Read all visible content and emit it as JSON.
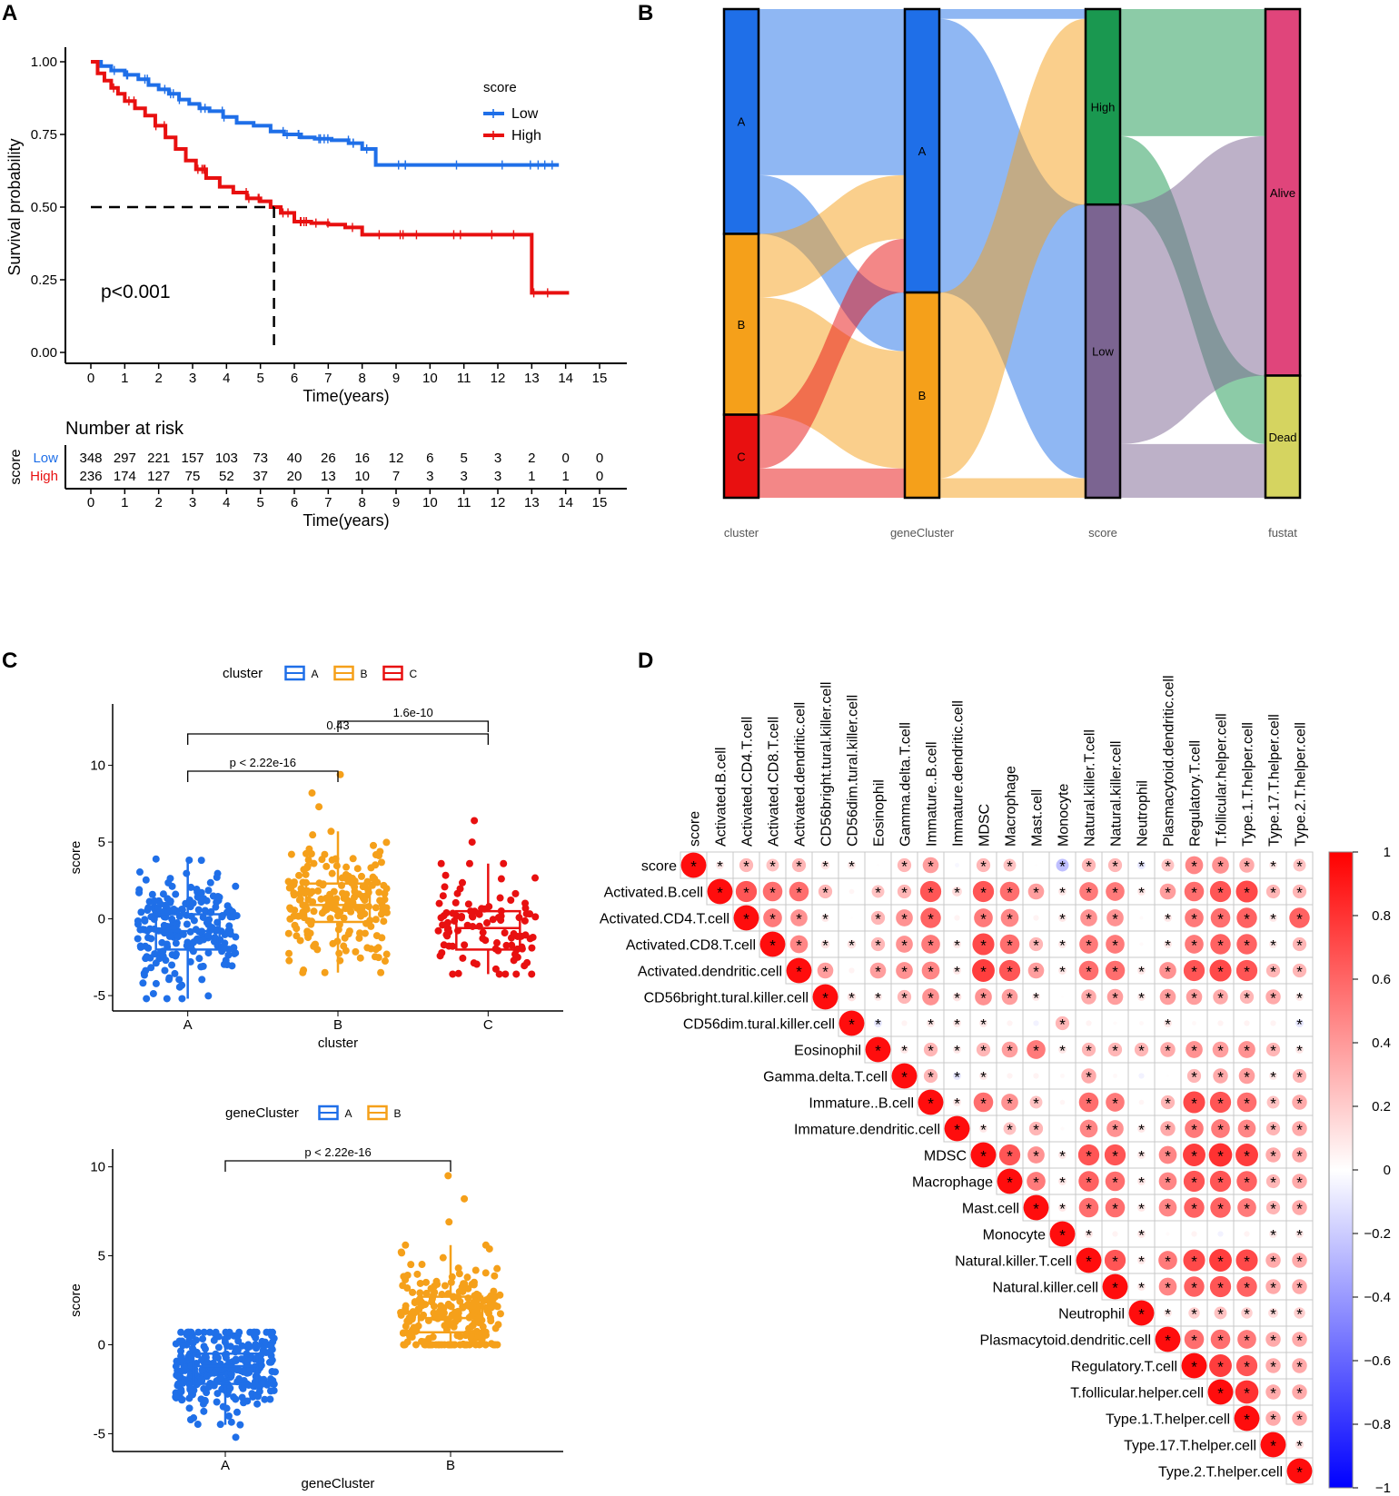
{
  "panel_labels": [
    "A",
    "B",
    "C",
    "D"
  ],
  "chart_data": [
    {
      "id": "A",
      "type": "line",
      "subtype": "kaplan-meier",
      "xlabel": "Time(years)",
      "ylabel": "Survival probability",
      "xticks": [
        0,
        1,
        2,
        3,
        4,
        5,
        6,
        7,
        8,
        9,
        10,
        11,
        12,
        13,
        14,
        15
      ],
      "yticks": [
        "0.00",
        "0.25",
        "0.50",
        "0.75",
        "1.00"
      ],
      "xlim": [
        0,
        15
      ],
      "ylim": [
        0,
        1
      ],
      "legend_title": "score",
      "pvalue": "p<0.001",
      "median_survival_high": 5.4,
      "series": [
        {
          "name": "Low",
          "color": "#1f6fe8",
          "x": [
            0,
            0.3,
            0.6,
            1,
            1.4,
            1.7,
            2,
            2.3,
            2.6,
            2.9,
            3.2,
            3.5,
            3.9,
            4.3,
            4.8,
            5.3,
            5.7,
            6.2,
            6.6,
            7.1,
            7.6,
            8.0,
            8.4,
            9.0,
            11.0,
            13.8
          ],
          "y": [
            1,
            0.985,
            0.97,
            0.955,
            0.94,
            0.92,
            0.905,
            0.89,
            0.87,
            0.855,
            0.84,
            0.83,
            0.81,
            0.79,
            0.78,
            0.76,
            0.75,
            0.74,
            0.735,
            0.73,
            0.72,
            0.7,
            0.645,
            0.645,
            0.645,
            0.645
          ]
        },
        {
          "name": "High",
          "color": "#e81010",
          "x": [
            0,
            0.2,
            0.4,
            0.6,
            0.8,
            1.0,
            1.3,
            1.6,
            1.9,
            2.2,
            2.5,
            2.8,
            3.1,
            3.4,
            3.8,
            4.2,
            4.6,
            5.0,
            5.3,
            5.6,
            6.0,
            6.5,
            7.0,
            7.5,
            8.0,
            9.0,
            11.0,
            12.9,
            13.0,
            14.1
          ],
          "y": [
            1,
            0.96,
            0.935,
            0.91,
            0.89,
            0.865,
            0.84,
            0.815,
            0.78,
            0.74,
            0.7,
            0.66,
            0.63,
            0.6,
            0.57,
            0.55,
            0.53,
            0.52,
            0.5,
            0.48,
            0.45,
            0.445,
            0.44,
            0.43,
            0.405,
            0.405,
            0.405,
            0.405,
            0.205,
            0.205
          ]
        }
      ],
      "risk_table": {
        "title": "Number at risk",
        "ylabel": "score",
        "xlabel": "Time(years)",
        "rows": [
          {
            "name": "Low",
            "color": "#1f6fe8",
            "values": [
              "348",
              "297",
              "221",
              "157",
              "103",
              "73",
              "40",
              "26",
              "16",
              "12",
              "6",
              "5",
              "3",
              "2",
              "0",
              "0"
            ]
          },
          {
            "name": "High",
            "color": "#e81010",
            "values": [
              "236",
              "174",
              "127",
              "75",
              "52",
              "37",
              "20",
              "13",
              "10",
              "7",
              "3",
              "3",
              "3",
              "1",
              "1",
              "0"
            ]
          }
        ]
      }
    },
    {
      "id": "B",
      "type": "sankey",
      "axes": [
        "cluster",
        "geneCluster",
        "score",
        "fustat"
      ],
      "nodes": [
        {
          "axis": 0,
          "label": "A",
          "value": 0.46,
          "color": "#1f6fe8"
        },
        {
          "axis": 0,
          "label": "B",
          "value": 0.37,
          "color": "#f5a01a"
        },
        {
          "axis": 0,
          "label": "C",
          "value": 0.17,
          "color": "#e81010"
        },
        {
          "axis": 1,
          "label": "A",
          "value": 0.58,
          "color": "#1f6fe8"
        },
        {
          "axis": 1,
          "label": "B",
          "value": 0.42,
          "color": "#f5a01a"
        },
        {
          "axis": 2,
          "label": "High",
          "value": 0.4,
          "color": "#1a9850"
        },
        {
          "axis": 2,
          "label": "Low",
          "value": 0.6,
          "color": "#7b6491"
        },
        {
          "axis": 3,
          "label": "Alive",
          "value": 0.75,
          "color": "#e0457b"
        },
        {
          "axis": 3,
          "label": "Dead",
          "value": 0.25,
          "color": "#d5d460"
        }
      ],
      "flows": [
        {
          "from": 0,
          "to": 3,
          "value": 0.34
        },
        {
          "from": 0,
          "to": 4,
          "value": 0.12
        },
        {
          "from": 1,
          "to": 3,
          "value": 0.13
        },
        {
          "from": 1,
          "to": 4,
          "value": 0.24
        },
        {
          "from": 2,
          "to": 3,
          "value": 0.11
        },
        {
          "from": 2,
          "to": 4,
          "value": 0.06
        },
        {
          "from": 3,
          "to": 5,
          "value": 0.02
        },
        {
          "from": 3,
          "to": 6,
          "value": 0.56
        },
        {
          "from": 4,
          "to": 5,
          "value": 0.38
        },
        {
          "from": 4,
          "to": 6,
          "value": 0.04
        },
        {
          "from": 5,
          "to": 7,
          "value": 0.26
        },
        {
          "from": 5,
          "to": 8,
          "value": 0.14
        },
        {
          "from": 6,
          "to": 7,
          "value": 0.49
        },
        {
          "from": 6,
          "to": 8,
          "value": 0.11
        }
      ]
    },
    {
      "id": "C1",
      "type": "box",
      "title": "cluster",
      "xlabel": "cluster",
      "ylabel": "score",
      "categories": [
        "A",
        "B",
        "C"
      ],
      "colors": [
        "#1f6fe8",
        "#f5a01a",
        "#e81010"
      ],
      "yticks": [
        "-5",
        "0",
        "5",
        "10"
      ],
      "ylim": [
        -6,
        14
      ],
      "boxes": [
        {
          "q1": -2.0,
          "median": -0.8,
          "q3": 0.3,
          "whislo": -5.2,
          "whishi": 3.9,
          "n": 220
        },
        {
          "q1": -0.2,
          "median": 0.9,
          "q3": 2.3,
          "whislo": -3.5,
          "whishi": 5.7,
          "n": 200
        },
        {
          "q1": -2.0,
          "median": -0.6,
          "q3": 0.5,
          "whislo": -3.6,
          "whishi": 3.6,
          "n": 100
        }
      ],
      "outliers": [
        [],
        [
          9.4,
          8.2,
          7.3
        ],
        [
          6.4,
          5.0
        ]
      ],
      "comparisons": [
        {
          "label": "p < 2.22e-16",
          "pair": [
            0,
            1
          ]
        },
        {
          "label": "0.43",
          "pair": [
            0,
            2
          ]
        },
        {
          "label": "1.6e-10",
          "pair": [
            1,
            2
          ]
        }
      ]
    },
    {
      "id": "C2",
      "type": "box",
      "title": "geneCluster",
      "xlabel": "geneCluster",
      "ylabel": "score",
      "categories": [
        "A",
        "B"
      ],
      "colors": [
        "#1f6fe8",
        "#f5a01a"
      ],
      "yticks": [
        "-5",
        "0",
        "5",
        "10"
      ],
      "ylim": [
        -6,
        11
      ],
      "boxes": [
        {
          "q1": -2.2,
          "median": -1.2,
          "q3": -0.5,
          "whislo": -4.5,
          "whishi": 0.7,
          "n": 330
        },
        {
          "q1": 0.7,
          "median": 1.5,
          "q3": 2.7,
          "whislo": 0.0,
          "whishi": 5.6,
          "n": 240
        }
      ],
      "outliers": [
        [
          -5.2
        ],
        [
          9.5,
          8.2,
          6.9
        ]
      ],
      "comparisons": [
        {
          "label": "p < 2.22e-16",
          "pair": [
            0,
            1
          ]
        }
      ]
    },
    {
      "id": "D",
      "type": "heatmap",
      "subtype": "correlation-upper-triangle",
      "labels": [
        "score",
        "Activated.B.cell",
        "Activated.CD4.T.cell",
        "Activated.CD8.T.cell",
        "Activated.dendritic.cell",
        "CD56bright.tural.killer.cell",
        "CD56dim.tural.killer.cell",
        "Eosinophil",
        "Gamma.delta.T.cell",
        "Immature..B.cell",
        "Immature.dendritic.cell",
        "MDSC",
        "Macrophage",
        "Mast.cell",
        "Monocyte",
        "Natural.killer.T.cell",
        "Natural.killer.cell",
        "Neutrophil",
        "Plasmacytoid.dendritic.cell",
        "Regulatory.T.cell",
        "T.follicular.helper.cell",
        "Type.1.T.helper.cell",
        "Type.17.T.helper.cell",
        "Type.2.T.helper.cell"
      ],
      "colorbar_ticks": [
        "1",
        "0.8",
        "0.6",
        "0.4",
        "0.2",
        "0",
        "−0.2",
        "−0.4",
        "−0.6",
        "−0.8",
        "−1"
      ],
      "significance_mark": "*",
      "upper_triangle_rows": [
        [
          1,
          0.1,
          0.3,
          0.25,
          0.3,
          0.12,
          0.1,
          0.01,
          0.3,
          0.4,
          -0.03,
          0.3,
          0.25,
          0.01,
          -0.25,
          0.3,
          0.3,
          -0.1,
          0.25,
          0.5,
          0.45,
          0.35,
          0.1,
          0.25
        ],
        [
          1,
          0.7,
          0.6,
          0.6,
          0.3,
          0.04,
          0.25,
          0.3,
          0.7,
          0.15,
          0.7,
          0.6,
          0.4,
          0.1,
          0.55,
          0.55,
          0.1,
          0.4,
          0.6,
          0.7,
          0.75,
          0.3,
          0.3
        ],
        [
          1,
          0.55,
          0.45,
          0.1,
          0.01,
          0.3,
          0.45,
          0.65,
          0.05,
          0.55,
          0.5,
          0.05,
          0.1,
          0.45,
          0.45,
          0.02,
          0.1,
          0.55,
          0.6,
          0.65,
          0.1,
          0.65
        ],
        [
          1,
          0.5,
          0.12,
          0.12,
          0.3,
          0.45,
          0.55,
          0.1,
          0.75,
          0.6,
          0.3,
          0.1,
          0.55,
          0.55,
          0.02,
          0.1,
          0.55,
          0.65,
          0.65,
          0.1,
          0.3
        ],
        [
          1,
          0.4,
          0.05,
          0.4,
          0.45,
          0.5,
          0.1,
          0.8,
          0.7,
          0.4,
          0.1,
          0.6,
          0.6,
          0.1,
          0.45,
          0.7,
          0.75,
          0.7,
          0.3,
          0.3
        ],
        [
          1,
          0.12,
          0.1,
          0.3,
          0.45,
          0.12,
          0.45,
          0.4,
          0.1,
          0.01,
          0.35,
          0.4,
          0.1,
          0.4,
          0.4,
          0.35,
          0.3,
          0.35,
          0.1
        ],
        [
          1,
          -0.1,
          0.05,
          0.1,
          0.1,
          0.1,
          0.05,
          -0.05,
          0.3,
          0.05,
          0.02,
          0.03,
          0.1,
          0.03,
          0.05,
          0.05,
          0.05,
          -0.1
        ],
        [
          1,
          0.1,
          0.3,
          0.1,
          0.3,
          0.4,
          0.55,
          0.1,
          0.3,
          0.3,
          0.3,
          0.35,
          0.45,
          0.4,
          0.45,
          0.3,
          0.1
        ],
        [
          1,
          0.3,
          -0.1,
          0.1,
          0.05,
          0.05,
          0.03,
          0.35,
          0.03,
          -0.05,
          0.01,
          0.3,
          0.35,
          0.4,
          0.1,
          0.3
        ],
        [
          1,
          0.1,
          0.6,
          0.45,
          0.25,
          0.04,
          0.6,
          0.55,
          0.04,
          0.3,
          0.75,
          0.7,
          0.6,
          0.25,
          0.35
        ],
        [
          1,
          0.1,
          0.25,
          0.3,
          0.02,
          0.5,
          0.45,
          0.1,
          0.35,
          0.55,
          0.55,
          0.5,
          0.3,
          0.35
        ],
        [
          1,
          0.7,
          0.45,
          0.1,
          0.7,
          0.7,
          0.1,
          0.5,
          0.8,
          0.85,
          0.8,
          0.35,
          0.35
        ],
        [
          1,
          0.55,
          0.1,
          0.65,
          0.6,
          0.1,
          0.5,
          0.7,
          0.7,
          0.65,
          0.3,
          0.35
        ],
        [
          1,
          0.1,
          0.6,
          0.6,
          0.1,
          0.5,
          0.65,
          0.65,
          0.55,
          0.3,
          0.35
        ],
        [
          1,
          0.1,
          0.05,
          0.1,
          0.02,
          0.05,
          -0.05,
          0.05,
          0.1,
          0.1
        ],
        [
          1,
          0.7,
          0.1,
          0.55,
          0.75,
          0.8,
          0.75,
          0.35,
          0.35
        ],
        [
          1,
          0.1,
          0.5,
          0.65,
          0.7,
          0.65,
          0.35,
          0.35
        ],
        [
          1,
          0.1,
          0.2,
          0.25,
          0.2,
          0.15,
          0.2
        ],
        [
          1,
          0.6,
          0.6,
          0.55,
          0.35,
          0.35
        ],
        [
          1,
          0.8,
          0.7,
          0.35,
          0.35
        ],
        [
          1,
          0.85,
          0.35,
          0.35
        ],
        [
          1,
          0.35,
          0.35
        ],
        [
          1,
          0.12
        ],
        [
          1
        ]
      ]
    }
  ]
}
